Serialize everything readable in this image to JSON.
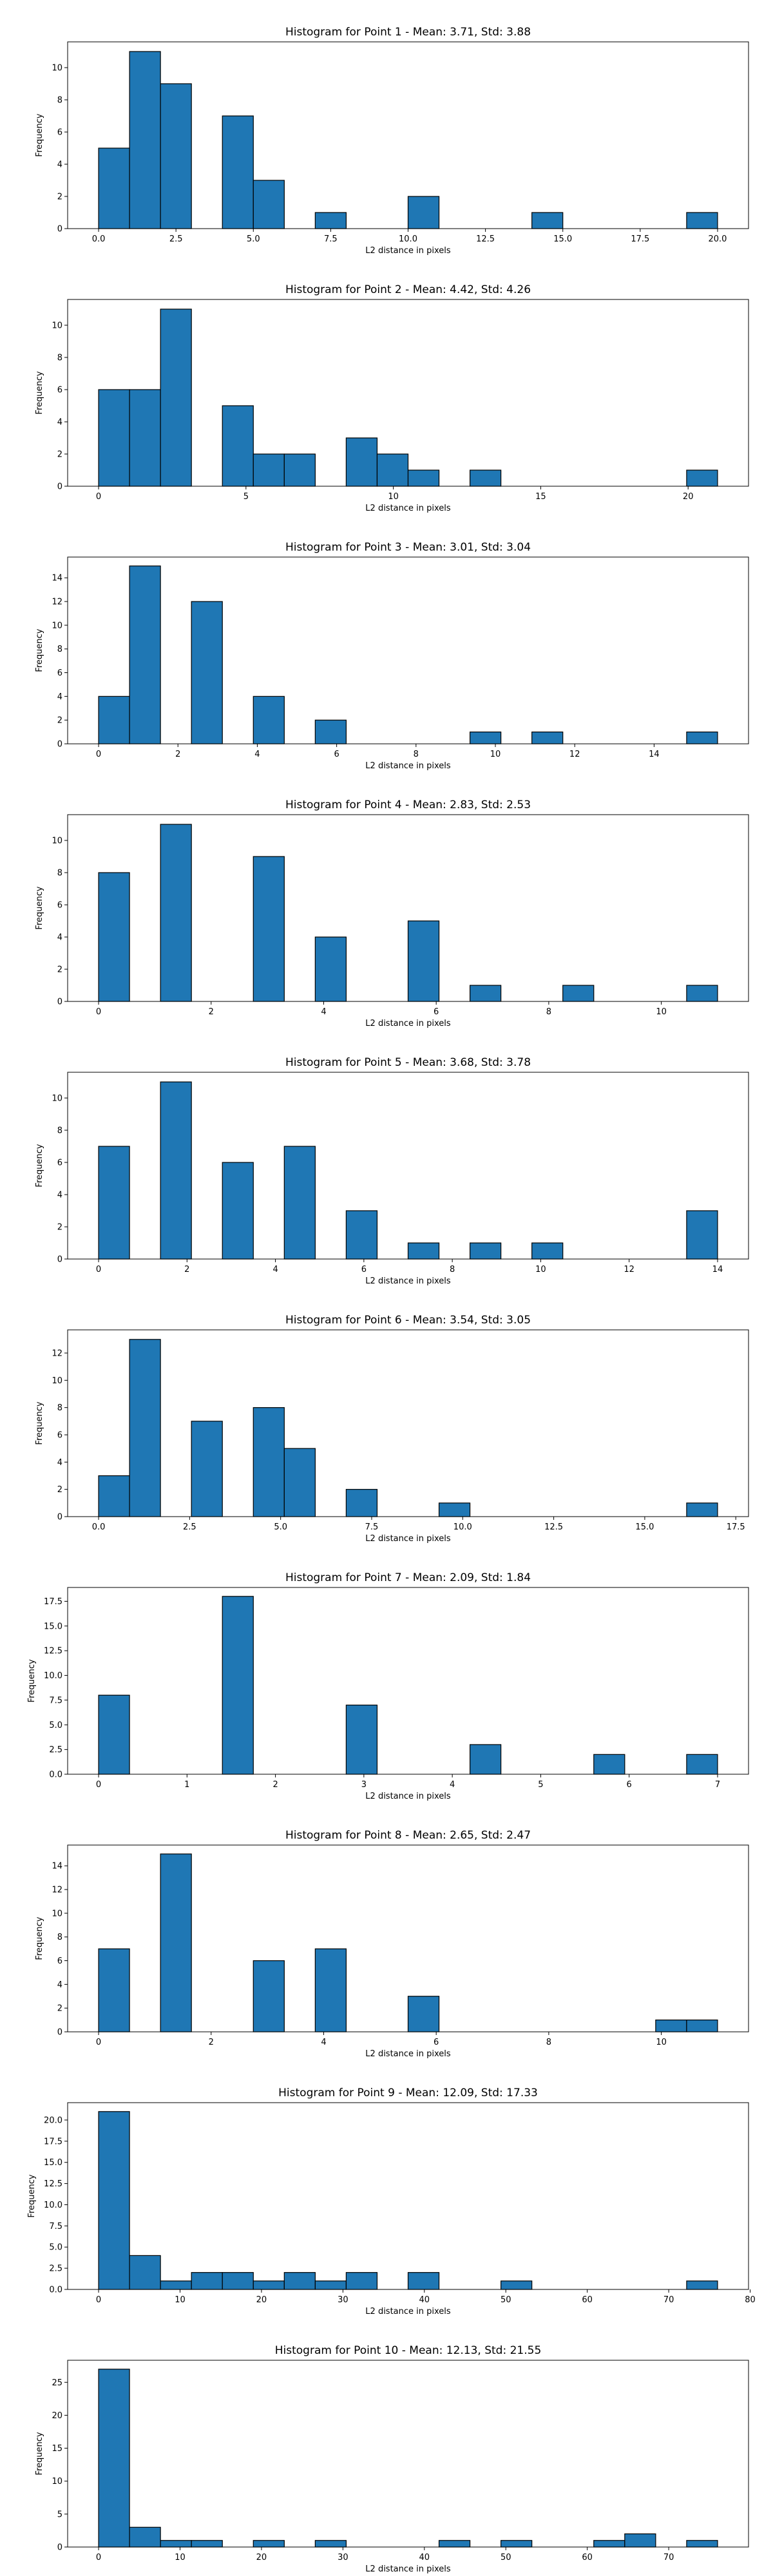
{
  "figure": {
    "background": "#ffffff",
    "bar_color": "#1f77b4",
    "edge_color": "#000000"
  },
  "chart_data": [
    {
      "type": "bar",
      "title": "Histogram for Point 1 - Mean: 3.71, Std: 3.88",
      "xlabel": "L2 distance in pixels",
      "ylabel": "Frequency",
      "xlim": [
        -1.0,
        21.0
      ],
      "ylim": [
        0,
        11.6
      ],
      "xticks": [
        0.0,
        2.5,
        5.0,
        7.5,
        10.0,
        12.5,
        15.0,
        17.5,
        20.0
      ],
      "xtick_labels": [
        "0.0",
        "2.5",
        "5.0",
        "7.5",
        "10.0",
        "12.5",
        "15.0",
        "17.5",
        "20.0"
      ],
      "yticks": [
        0,
        2,
        4,
        6,
        8,
        10
      ],
      "ytick_labels": [
        "0",
        "2",
        "4",
        "6",
        "8",
        "10"
      ],
      "bin_edges": [
        0.0,
        1.0,
        2.0,
        3.0,
        4.0,
        5.0,
        6.0,
        7.0,
        8.0,
        9.0,
        10.0,
        11.0,
        12.0,
        13.0,
        14.0,
        15.0,
        16.0,
        17.0,
        18.0,
        19.0,
        20.0
      ],
      "values": [
        5,
        11,
        9,
        0,
        7,
        3,
        0,
        1,
        0,
        0,
        2,
        0,
        0,
        0,
        1,
        0,
        0,
        0,
        0,
        1
      ]
    },
    {
      "type": "bar",
      "title": "Histogram for Point 2 - Mean: 4.42, Std: 4.26",
      "xlabel": "L2 distance in pixels",
      "ylabel": "Frequency",
      "xlim": [
        -1.05,
        22.05
      ],
      "ylim": [
        0,
        11.6
      ],
      "xticks": [
        0,
        5,
        10,
        15,
        20
      ],
      "xtick_labels": [
        "0",
        "5",
        "10",
        "15",
        "20"
      ],
      "yticks": [
        0,
        2,
        4,
        6,
        8,
        10
      ],
      "ytick_labels": [
        "0",
        "2",
        "4",
        "6",
        "8",
        "10"
      ],
      "bin_edges": [
        0.0,
        1.05,
        2.1,
        3.15,
        4.2,
        5.25,
        6.3,
        7.35,
        8.4,
        9.45,
        10.5,
        11.55,
        12.6,
        13.65,
        14.7,
        15.75,
        16.8,
        17.85,
        18.9,
        19.95,
        21.0
      ],
      "values": [
        6,
        6,
        11,
        0,
        5,
        2,
        2,
        0,
        3,
        2,
        1,
        0,
        1,
        0,
        0,
        0,
        0,
        0,
        0,
        1
      ]
    },
    {
      "type": "bar",
      "title": "Histogram for Point 3 - Mean: 3.01, Std: 3.04",
      "xlabel": "L2 distance in pixels",
      "ylabel": "Frequency",
      "xlim": [
        -0.78,
        16.38
      ],
      "ylim": [
        0,
        15.75
      ],
      "xticks": [
        0,
        2,
        4,
        6,
        8,
        10,
        12,
        14
      ],
      "xtick_labels": [
        "0",
        "2",
        "4",
        "6",
        "8",
        "10",
        "12",
        "14"
      ],
      "yticks": [
        0,
        2,
        4,
        6,
        8,
        10,
        12,
        14
      ],
      "ytick_labels": [
        "0",
        "2",
        "4",
        "6",
        "8",
        "10",
        "12",
        "14"
      ],
      "bin_edges": [
        0.0,
        0.78,
        1.56,
        2.34,
        3.12,
        3.9,
        4.68,
        5.46,
        6.24,
        7.02,
        7.8,
        8.58,
        9.36,
        10.14,
        10.92,
        11.7,
        12.48,
        13.26,
        14.04,
        14.82,
        15.6
      ],
      "values": [
        4,
        15,
        0,
        12,
        0,
        4,
        0,
        2,
        0,
        0,
        0,
        0,
        1,
        0,
        1,
        0,
        0,
        0,
        0,
        1
      ]
    },
    {
      "type": "bar",
      "title": "Histogram for Point 4 - Mean: 2.83, Std: 2.53",
      "xlabel": "L2 distance in pixels",
      "ylabel": "Frequency",
      "xlim": [
        -0.55,
        11.55
      ],
      "ylim": [
        0,
        11.6
      ],
      "xticks": [
        0,
        2,
        4,
        6,
        8,
        10
      ],
      "xtick_labels": [
        "0",
        "2",
        "4",
        "6",
        "8",
        "10"
      ],
      "yticks": [
        0,
        2,
        4,
        6,
        8,
        10
      ],
      "ytick_labels": [
        "0",
        "2",
        "4",
        "6",
        "8",
        "10"
      ],
      "bin_edges": [
        0.0,
        0.55,
        1.1,
        1.65,
        2.2,
        2.75,
        3.3,
        3.85,
        4.4,
        4.95,
        5.5,
        6.05,
        6.6,
        7.15,
        7.7,
        8.25,
        8.8,
        9.35,
        9.9,
        10.45,
        11.0
      ],
      "values": [
        8,
        0,
        11,
        0,
        0,
        9,
        0,
        4,
        0,
        0,
        5,
        0,
        1,
        0,
        0,
        1,
        0,
        0,
        0,
        1
      ]
    },
    {
      "type": "bar",
      "title": "Histogram for Point 5 - Mean: 3.68, Std: 3.78",
      "xlabel": "L2 distance in pixels",
      "ylabel": "Frequency",
      "xlim": [
        -0.7,
        14.7
      ],
      "ylim": [
        0,
        11.6
      ],
      "xticks": [
        0,
        2,
        4,
        6,
        8,
        10,
        12,
        14
      ],
      "xtick_labels": [
        "0",
        "2",
        "4",
        "6",
        "8",
        "10",
        "12",
        "14"
      ],
      "yticks": [
        0,
        2,
        4,
        6,
        8,
        10
      ],
      "ytick_labels": [
        "0",
        "2",
        "4",
        "6",
        "8",
        "10"
      ],
      "bin_edges": [
        0.0,
        0.7,
        1.4,
        2.1,
        2.8,
        3.5,
        4.2,
        4.9,
        5.6,
        6.3,
        7.0,
        7.7,
        8.4,
        9.1,
        9.8,
        10.5,
        11.2,
        11.9,
        12.6,
        13.3,
        14.0
      ],
      "values": [
        7,
        0,
        11,
        0,
        6,
        0,
        7,
        0,
        3,
        0,
        1,
        0,
        1,
        0,
        1,
        0,
        0,
        0,
        0,
        3
      ]
    },
    {
      "type": "bar",
      "title": "Histogram for Point 6 - Mean: 3.54, Std: 3.05",
      "xlabel": "L2 distance in pixels",
      "ylabel": "Frequency",
      "xlim": [
        -0.85,
        17.85
      ],
      "ylim": [
        0,
        13.7
      ],
      "xticks": [
        0.0,
        2.5,
        5.0,
        7.5,
        10.0,
        12.5,
        15.0,
        17.5
      ],
      "xtick_labels": [
        "0.0",
        "2.5",
        "5.0",
        "7.5",
        "10.0",
        "12.5",
        "15.0",
        "17.5"
      ],
      "yticks": [
        0,
        2,
        4,
        6,
        8,
        10,
        12
      ],
      "ytick_labels": [
        "0",
        "2",
        "4",
        "6",
        "8",
        "10",
        "12"
      ],
      "bin_edges": [
        0.0,
        0.85,
        1.7,
        2.55,
        3.4,
        4.25,
        5.1,
        5.95,
        6.8,
        7.65,
        8.5,
        9.35,
        10.2,
        11.05,
        11.9,
        12.75,
        13.6,
        14.45,
        15.3,
        16.15,
        17.0
      ],
      "values": [
        3,
        13,
        0,
        7,
        0,
        8,
        5,
        0,
        2,
        0,
        0,
        1,
        0,
        0,
        0,
        0,
        0,
        0,
        0,
        1
      ]
    },
    {
      "type": "bar",
      "title": "Histogram for Point 7 - Mean: 2.09, Std: 1.84",
      "xlabel": "L2 distance in pixels",
      "ylabel": "Frequency",
      "xlim": [
        -0.35,
        7.35
      ],
      "ylim": [
        0,
        18.9
      ],
      "xticks": [
        0,
        1,
        2,
        3,
        4,
        5,
        6,
        7
      ],
      "xtick_labels": [
        "0",
        "1",
        "2",
        "3",
        "4",
        "5",
        "6",
        "7"
      ],
      "yticks": [
        0.0,
        2.5,
        5.0,
        7.5,
        10.0,
        12.5,
        15.0,
        17.5
      ],
      "ytick_labels": [
        "0.0",
        "2.5",
        "5.0",
        "7.5",
        "10.0",
        "12.5",
        "15.0",
        "17.5"
      ],
      "bin_edges": [
        0.0,
        0.35,
        0.7,
        1.05,
        1.4,
        1.75,
        2.1,
        2.45,
        2.8,
        3.15,
        3.5,
        3.85,
        4.2,
        4.55,
        4.9,
        5.25,
        5.6,
        5.95,
        6.3,
        6.65,
        7.0
      ],
      "values": [
        8,
        0,
        0,
        0,
        18,
        0,
        0,
        0,
        7,
        0,
        0,
        0,
        3,
        0,
        0,
        0,
        2,
        0,
        0,
        2
      ]
    },
    {
      "type": "bar",
      "title": "Histogram for Point 8 - Mean: 2.65, Std: 2.47",
      "xlabel": "L2 distance in pixels",
      "ylabel": "Frequency",
      "xlim": [
        -0.55,
        11.55
      ],
      "ylim": [
        0,
        15.75
      ],
      "xticks": [
        0,
        2,
        4,
        6,
        8,
        10
      ],
      "xtick_labels": [
        "0",
        "2",
        "4",
        "6",
        "8",
        "10"
      ],
      "yticks": [
        0,
        2,
        4,
        6,
        8,
        10,
        12,
        14
      ],
      "ytick_labels": [
        "0",
        "2",
        "4",
        "6",
        "8",
        "10",
        "12",
        "14"
      ],
      "bin_edges": [
        0.0,
        0.55,
        1.1,
        1.65,
        2.2,
        2.75,
        3.3,
        3.85,
        4.4,
        4.95,
        5.5,
        6.05,
        6.6,
        7.15,
        7.7,
        8.25,
        8.8,
        9.35,
        9.9,
        10.45,
        11.0
      ],
      "values": [
        7,
        0,
        15,
        0,
        0,
        6,
        0,
        7,
        0,
        0,
        3,
        0,
        0,
        0,
        0,
        0,
        0,
        0,
        1,
        1
      ]
    },
    {
      "type": "bar",
      "title": "Histogram for Point 9 - Mean: 12.09, Std: 17.33",
      "xlabel": "L2 distance in pixels",
      "ylabel": "Frequency",
      "xlim": [
        -3.8,
        79.8
      ],
      "ylim": [
        0,
        22.05
      ],
      "xticks": [
        0,
        10,
        20,
        30,
        40,
        50,
        60,
        70,
        80
      ],
      "xtick_labels": [
        "0",
        "10",
        "20",
        "30",
        "40",
        "50",
        "60",
        "70",
        "80"
      ],
      "yticks": [
        0.0,
        2.5,
        5.0,
        7.5,
        10.0,
        12.5,
        15.0,
        17.5,
        20.0
      ],
      "ytick_labels": [
        "0.0",
        "2.5",
        "5.0",
        "7.5",
        "10.0",
        "12.5",
        "15.0",
        "17.5",
        "20.0"
      ],
      "bin_edges": [
        0.0,
        3.8,
        7.6,
        11.4,
        15.2,
        19.0,
        22.8,
        26.6,
        30.4,
        34.2,
        38.0,
        41.8,
        45.6,
        49.4,
        53.2,
        57.0,
        60.8,
        64.6,
        68.4,
        72.2,
        76.0
      ],
      "values": [
        21,
        4,
        1,
        2,
        2,
        1,
        2,
        1,
        2,
        0,
        2,
        0,
        0,
        1,
        0,
        0,
        0,
        0,
        0,
        1
      ]
    },
    {
      "type": "bar",
      "title": "Histogram for Point 10 - Mean: 12.13, Std: 21.55",
      "xlabel": "L2 distance in pixels",
      "ylabel": "Frequency",
      "xlim": [
        -3.8,
        79.8
      ],
      "ylim": [
        0,
        28.35
      ],
      "xticks": [
        0,
        10,
        20,
        30,
        40,
        50,
        60,
        70
      ],
      "xtick_labels": [
        "0",
        "10",
        "20",
        "30",
        "40",
        "50",
        "60",
        "70"
      ],
      "yticks": [
        0,
        5,
        10,
        15,
        20,
        25
      ],
      "ytick_labels": [
        "0",
        "5",
        "10",
        "15",
        "20",
        "25"
      ],
      "bin_edges": [
        0.0,
        3.8,
        7.6,
        11.4,
        15.2,
        19.0,
        22.8,
        26.6,
        30.4,
        34.2,
        38.0,
        41.8,
        45.6,
        49.4,
        53.2,
        57.0,
        60.8,
        64.6,
        68.4,
        72.2,
        76.0
      ],
      "values": [
        27,
        3,
        1,
        1,
        0,
        1,
        0,
        1,
        0,
        0,
        0,
        1,
        0,
        1,
        0,
        0,
        1,
        2,
        0,
        1
      ]
    }
  ]
}
